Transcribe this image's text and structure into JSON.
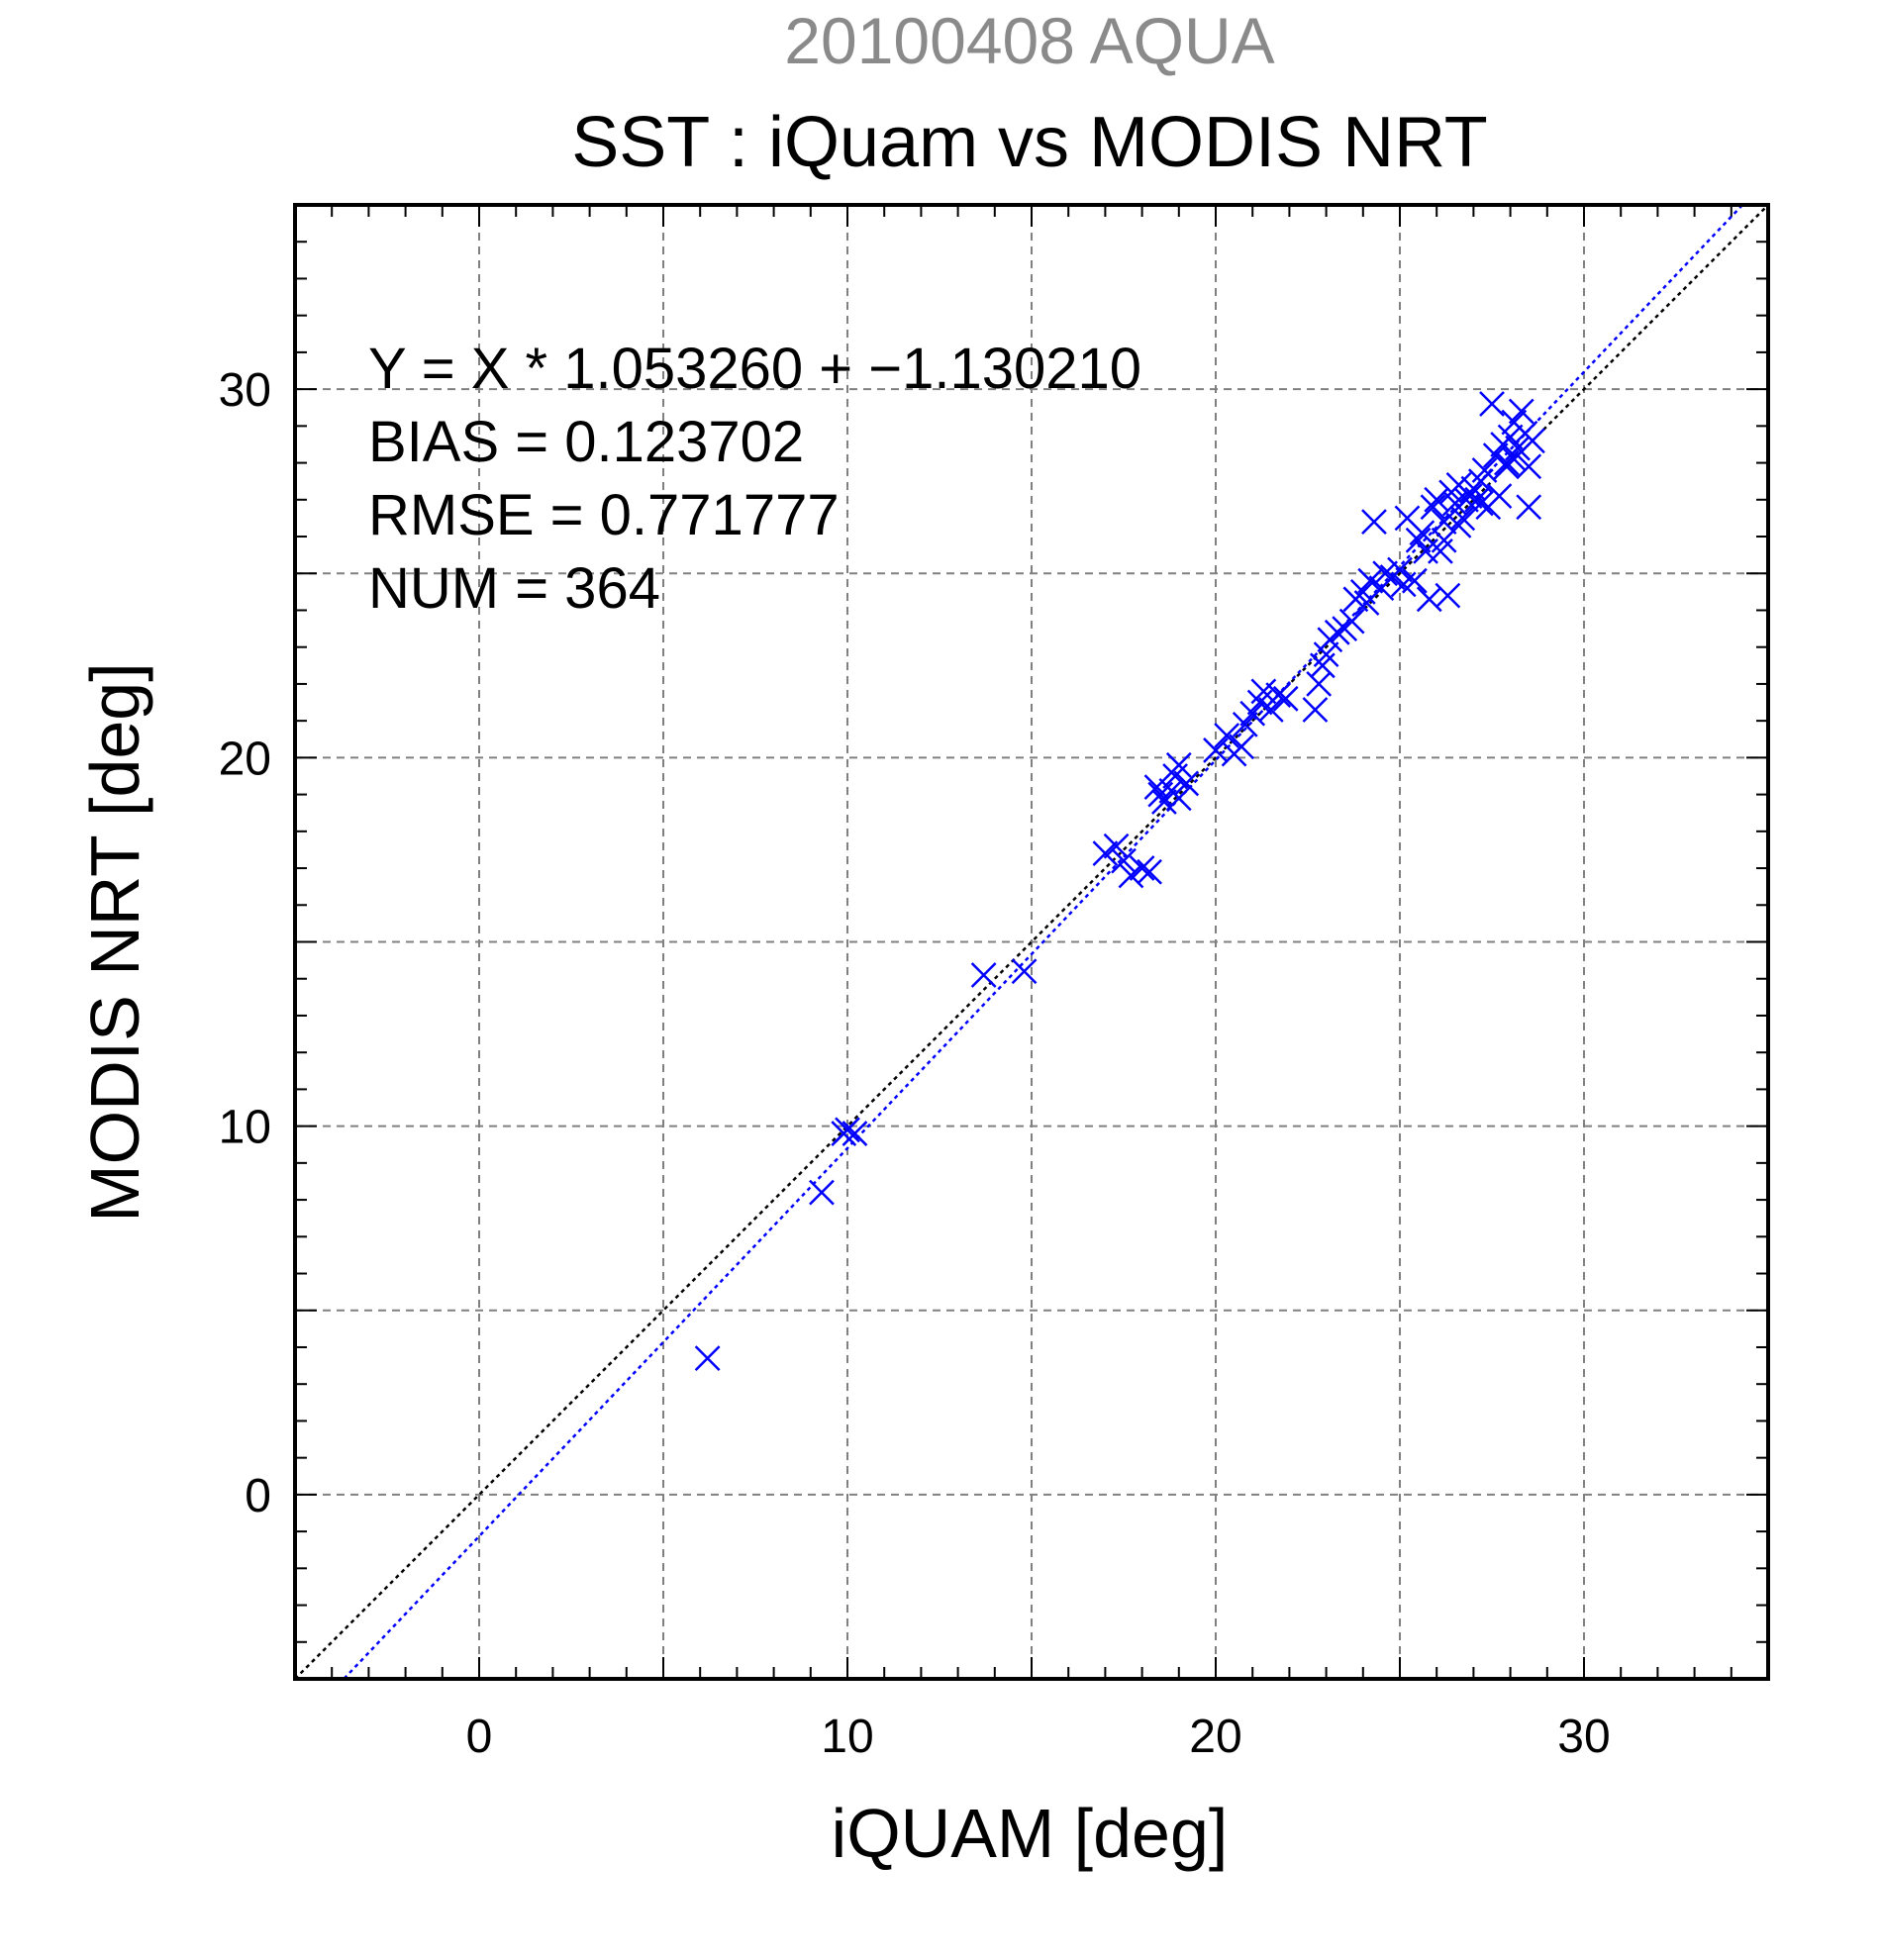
{
  "chart_data": {
    "type": "scatter",
    "date_label": "20100408 AQUA",
    "title": "SST : iQuam vs MODIS NRT",
    "xlabel": "iQUAM [deg]",
    "ylabel": "MODIS NRT [deg]",
    "xlim": [
      -5,
      35
    ],
    "ylim": [
      -5,
      35
    ],
    "xticks": [
      0,
      10,
      20,
      30
    ],
    "yticks": [
      0,
      10,
      20,
      30
    ],
    "xtick_labels": [
      "0",
      "10",
      "20",
      "30"
    ],
    "ytick_labels": [
      "0",
      "10",
      "20",
      "30"
    ],
    "grid": true,
    "grid_step": 5,
    "colors": {
      "points": "#0000ff",
      "fit_line": "#0000ff",
      "identity_line": "#000000",
      "grid": "#808080",
      "date_label": "#8a8a8a"
    },
    "stats": {
      "equation": "Y = X * 1.053260 + −1.130210",
      "bias": "BIAS = 0.123702",
      "rmse": "RMSE = 0.771777",
      "num": "NUM = 364"
    },
    "fit": {
      "slope": 1.05326,
      "intercept": -1.13021
    },
    "series": [
      {
        "marker": "x",
        "points": [
          [
            6.2,
            3.7
          ],
          [
            9.3,
            8.2
          ],
          [
            9.9,
            9.8
          ],
          [
            10.2,
            9.8
          ],
          [
            10.0,
            9.9
          ],
          [
            13.7,
            14.1
          ],
          [
            14.8,
            14.2
          ],
          [
            17.0,
            17.4
          ],
          [
            17.3,
            17.6
          ],
          [
            17.5,
            17.2
          ],
          [
            17.7,
            16.8
          ],
          [
            18.0,
            17.0
          ],
          [
            18.2,
            16.9
          ],
          [
            18.4,
            19.2
          ],
          [
            18.5,
            19.0
          ],
          [
            18.6,
            18.8
          ],
          [
            18.8,
            19.1
          ],
          [
            18.9,
            19.5
          ],
          [
            19.0,
            19.8
          ],
          [
            19.2,
            19.3
          ],
          [
            19.0,
            18.9
          ],
          [
            20.0,
            20.2
          ],
          [
            20.3,
            20.6
          ],
          [
            20.5,
            20.1
          ],
          [
            20.7,
            20.3
          ],
          [
            20.8,
            20.9
          ],
          [
            21.0,
            21.2
          ],
          [
            21.2,
            21.5
          ],
          [
            21.3,
            21.8
          ],
          [
            21.5,
            21.3
          ],
          [
            21.7,
            21.7
          ],
          [
            21.9,
            21.6
          ],
          [
            22.7,
            21.3
          ],
          [
            22.8,
            22.0
          ],
          [
            22.9,
            22.5
          ],
          [
            23.0,
            22.8
          ],
          [
            23.1,
            23.2
          ],
          [
            23.3,
            23.4
          ],
          [
            23.5,
            23.5
          ],
          [
            23.7,
            23.7
          ],
          [
            23.8,
            24.3
          ],
          [
            24.0,
            24.5
          ],
          [
            24.1,
            24.2
          ],
          [
            24.2,
            24.8
          ],
          [
            24.3,
            26.4
          ],
          [
            24.5,
            24.6
          ],
          [
            24.6,
            25.0
          ],
          [
            24.8,
            24.9
          ],
          [
            25.0,
            25.1
          ],
          [
            25.1,
            24.7
          ],
          [
            25.2,
            26.5
          ],
          [
            25.4,
            24.8
          ],
          [
            25.5,
            25.9
          ],
          [
            25.6,
            26.1
          ],
          [
            25.8,
            24.3
          ],
          [
            25.9,
            26.8
          ],
          [
            26.0,
            27.0
          ],
          [
            26.1,
            25.6
          ],
          [
            26.2,
            26.4
          ],
          [
            26.3,
            24.4
          ],
          [
            26.4,
            27.2
          ],
          [
            26.5,
            26.9
          ],
          [
            26.6,
            27.4
          ],
          [
            26.7,
            26.5
          ],
          [
            26.8,
            27.0
          ],
          [
            26.9,
            27.1
          ],
          [
            27.0,
            27.3
          ],
          [
            27.1,
            27.0
          ],
          [
            27.2,
            27.5
          ],
          [
            27.3,
            27.8
          ],
          [
            27.4,
            26.8
          ],
          [
            27.5,
            29.6
          ],
          [
            27.6,
            28.2
          ],
          [
            27.7,
            27.1
          ],
          [
            27.8,
            28.5
          ],
          [
            27.9,
            27.9
          ],
          [
            28.0,
            28.7
          ],
          [
            28.1,
            28.1
          ],
          [
            28.2,
            28.4
          ],
          [
            28.3,
            29.4
          ],
          [
            28.4,
            28.8
          ],
          [
            28.5,
            27.9
          ],
          [
            28.6,
            28.6
          ],
          [
            28.5,
            26.8
          ],
          [
            28.1,
            29.1
          ],
          [
            27.2,
            26.9
          ],
          [
            26.2,
            25.9
          ],
          [
            25.7,
            25.6
          ],
          [
            26.6,
            26.3
          ],
          [
            27.9,
            28.0
          ]
        ]
      }
    ]
  }
}
